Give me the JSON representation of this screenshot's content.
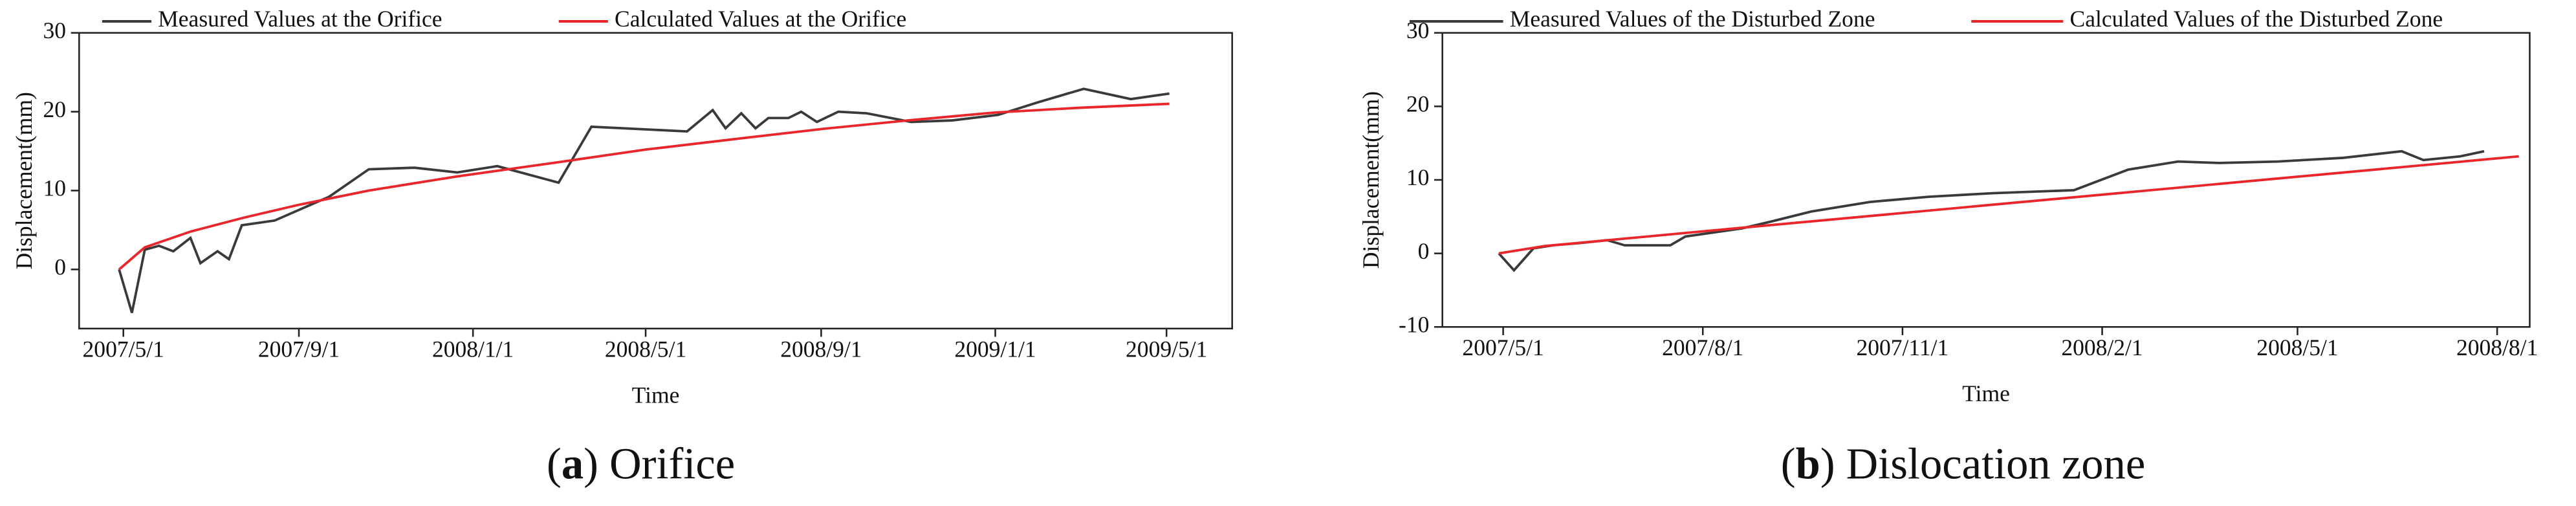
{
  "chart_data": [
    {
      "type": "line",
      "caption_parts": [
        "(",
        "a",
        ") Orifice"
      ],
      "x_label": "Time",
      "y_label": "Displacement(mm)",
      "xlim": [
        "2007-03-31",
        "2009-06-16"
      ],
      "xticks": [
        {
          "value": "2007-05-01",
          "label": "2007/5/1"
        },
        {
          "value": "2007-09-01",
          "label": "2007/9/1"
        },
        {
          "value": "2008-01-01",
          "label": "2008/1/1"
        },
        {
          "value": "2008-05-01",
          "label": "2008/5/1"
        },
        {
          "value": "2008-09-01",
          "label": "2008/9/1"
        },
        {
          "value": "2009-01-01",
          "label": "2009/1/1"
        },
        {
          "value": "2009-05-01",
          "label": "2009/5/1"
        }
      ],
      "ylim": [
        -7.5,
        30
      ],
      "yticks": [
        0,
        10,
        20,
        30
      ],
      "series": [
        {
          "name": "Measured Values at the Orifice",
          "color": "#3a3a3a",
          "x": [
            "2007-04-28",
            "2007-05-07",
            "2007-05-16",
            "2007-05-26",
            "2007-06-05",
            "2007-06-17",
            "2007-06-24",
            "2007-07-06",
            "2007-07-14",
            "2007-07-23",
            "2007-08-15",
            "2007-09-22",
            "2007-10-20",
            "2007-11-21",
            "2007-12-21",
            "2008-01-18",
            "2008-03-01",
            "2008-03-24",
            "2008-05-30",
            "2008-06-17",
            "2008-06-26",
            "2008-07-07",
            "2008-07-17",
            "2008-07-26",
            "2008-08-09",
            "2008-08-18",
            "2008-08-29",
            "2008-09-13",
            "2008-10-03",
            "2008-11-03",
            "2008-12-02",
            "2009-01-03",
            "2009-01-31",
            "2009-03-04",
            "2009-04-06",
            "2009-05-03"
          ],
          "values": [
            0,
            -5.5,
            2.5,
            3,
            2.3,
            4,
            0.8,
            2.3,
            1.3,
            5.6,
            6.2,
            9.2,
            12.7,
            12.9,
            12.3,
            13.1,
            11,
            18.1,
            17.5,
            20.2,
            17.9,
            19.8,
            17.9,
            19.2,
            19.2,
            20,
            18.7,
            20,
            19.8,
            18.7,
            18.9,
            19.6,
            21.2,
            22.9,
            21.6,
            22.3
          ]
        },
        {
          "name": "Calculated Values at the Orifice",
          "color": "#e8262b",
          "x": [
            "2007-04-28",
            "2007-05-16",
            "2007-06-17",
            "2007-07-23",
            "2007-09-01",
            "2007-10-20",
            "2007-12-21",
            "2008-03-01",
            "2008-05-01",
            "2008-07-01",
            "2008-09-01",
            "2008-11-01",
            "2009-01-01",
            "2009-03-01",
            "2009-05-03"
          ],
          "values": [
            0,
            2.8,
            4.8,
            6.5,
            8.2,
            10,
            11.8,
            13.6,
            15.2,
            16.5,
            17.8,
            18.9,
            19.9,
            20.5,
            21
          ]
        }
      ]
    },
    {
      "type": "line",
      "caption_parts": [
        "(",
        "b",
        ") Dislocation zone"
      ],
      "x_label": "Time",
      "y_label": "Displacement(mm)",
      "xlim": [
        "2007-04-03",
        "2008-08-16"
      ],
      "xticks": [
        {
          "value": "2007-05-01",
          "label": "2007/5/1"
        },
        {
          "value": "2007-08-01",
          "label": "2007/8/1"
        },
        {
          "value": "2007-11-01",
          "label": "2007/11/1"
        },
        {
          "value": "2008-02-01",
          "label": "2008/2/1"
        },
        {
          "value": "2008-05-01",
          "label": "2008/5/1"
        },
        {
          "value": "2008-08-01",
          "label": "2008/8/1"
        }
      ],
      "ylim": [
        -10,
        30
      ],
      "yticks": [
        -10,
        0,
        10,
        20,
        30
      ],
      "series": [
        {
          "name": "Measured Values of the Disturbed Zone",
          "color": "#3a3a3a",
          "x": [
            "2007-04-29",
            "2007-05-06",
            "2007-05-15",
            "2007-05-24",
            "2007-06-05",
            "2007-06-18",
            "2007-06-26",
            "2007-07-05",
            "2007-07-17",
            "2007-07-24",
            "2007-08-19",
            "2007-09-01",
            "2007-09-20",
            "2007-10-17",
            "2007-11-13",
            "2007-12-13",
            "2008-01-19",
            "2008-02-13",
            "2008-03-07",
            "2008-03-26",
            "2008-04-22",
            "2008-05-22",
            "2008-06-18",
            "2008-06-28",
            "2008-07-15",
            "2008-07-26"
          ],
          "values": [
            0,
            -2.3,
            0.7,
            1.1,
            1.4,
            1.8,
            1.1,
            1.1,
            1.1,
            2.3,
            3.4,
            4.3,
            5.7,
            7,
            7.7,
            8.2,
            8.6,
            11.4,
            12.5,
            12.3,
            12.5,
            13,
            13.9,
            12.7,
            13.2,
            13.9
          ]
        },
        {
          "name": "Calculated Values of the Disturbed Zone",
          "color": "#e8262b",
          "x": [
            "2007-04-29",
            "2007-05-20",
            "2007-08-01",
            "2008-08-11"
          ],
          "values": [
            0,
            1,
            3,
            13.2
          ]
        }
      ]
    }
  ]
}
